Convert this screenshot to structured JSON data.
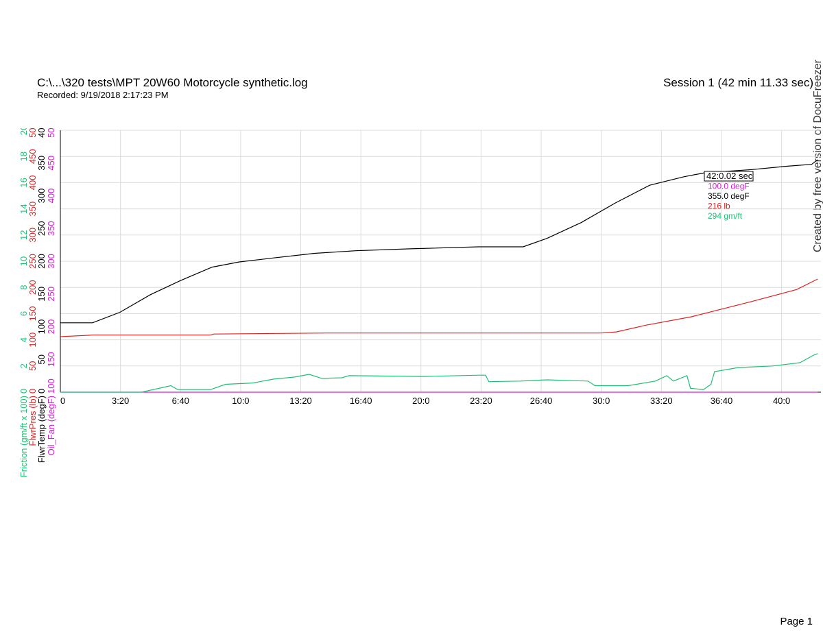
{
  "chart_data": {
    "type": "line",
    "title": "C:\\...\\320 tests\\MPT 20W60 Motorcycle synthetic.log",
    "subtitle": "Recorded: 9/19/2018 2:17:23 PM",
    "session": "Session 1 (42 min 11.33 sec)",
    "watermark": "Created by free version of DocuFreezer",
    "footer": "Page 1",
    "xlim": [
      0,
      2531
    ],
    "xticks": [
      0,
      {
        "value": 200,
        "label": "3:20"
      },
      {
        "value": 400,
        "label": "6:40"
      },
      {
        "value": 600,
        "label": "10:0"
      },
      {
        "value": 800,
        "label": "13:20"
      },
      {
        "value": 1000,
        "label": "16:40"
      },
      {
        "value": 1200,
        "label": "20:0"
      },
      {
        "value": 1400,
        "label": "23:20"
      },
      {
        "value": 1600,
        "label": "26:40"
      },
      {
        "value": 1800,
        "label": "30:0"
      },
      {
        "value": 2000,
        "label": "33:20"
      },
      {
        "value": 2200,
        "label": "36:40"
      },
      {
        "value": 2400,
        "label": "40:0"
      }
    ],
    "grid": true,
    "axes": [
      {
        "label": "Friction (gm/ft x 100)",
        "color": "#1fbf73",
        "ylim": [
          0,
          20
        ],
        "yticks": [
          0,
          2,
          4,
          6,
          8,
          10,
          12,
          14,
          16,
          18,
          20
        ]
      },
      {
        "label": "FlwrPres (lb)",
        "color": "#e02020",
        "ylim": [
          0,
          500
        ],
        "yticks": [
          0,
          50,
          100,
          150,
          200,
          250,
          300,
          350,
          400,
          450,
          500
        ]
      },
      {
        "label": "FlwrTemp (degF)",
        "color": "#000000",
        "ylim": [
          0,
          400
        ],
        "yticks": [
          0,
          50,
          100,
          150,
          200,
          250,
          300,
          350,
          400
        ]
      },
      {
        "label": "Oil_Fan (degF)",
        "color": "#d020d0",
        "ylim": [
          100,
          500
        ],
        "yticks": [
          100,
          150,
          200,
          250,
          300,
          350,
          400,
          450,
          500
        ]
      }
    ],
    "series": [
      {
        "name": "Oil_Fan (degF)",
        "axis": 3,
        "color": "#d020d0",
        "x": [
          0,
          2520
        ],
        "values": [
          100,
          100
        ]
      },
      {
        "name": "FlwrTemp (degF)",
        "axis": 2,
        "color": "#000000",
        "x": [
          0,
          107,
          198,
          300,
          398,
          505,
          596,
          710,
          846,
          983,
          1165,
          1392,
          1540,
          1620,
          1733,
          1847,
          1961,
          2075,
          2143,
          2302,
          2416,
          2500,
          2520
        ],
        "values": [
          106,
          106,
          122,
          149,
          170,
          191,
          199,
          205,
          212,
          216,
          219,
          222,
          222,
          235,
          259,
          289,
          316,
          329,
          335,
          340,
          345,
          348,
          355
        ]
      },
      {
        "name": "FlwrPres (lb)",
        "axis": 1,
        "color": "#e02020",
        "x": [
          0,
          108,
          500,
          510,
          890,
          1800,
          1850,
          1950,
          2100,
          2300,
          2450,
          2520
        ],
        "values": [
          106,
          109,
          109,
          111,
          113,
          113,
          115,
          128,
          144,
          173,
          196,
          216
        ]
      },
      {
        "name": "Friction (gm/ft x 100)",
        "axis": 0,
        "color": "#1fbf73",
        "x": [
          0,
          270,
          368,
          390,
          500,
          550,
          640,
          710,
          778,
          828,
          870,
          937,
          960,
          1210,
          1392,
          1415,
          1426,
          1530,
          1620,
          1756,
          1779,
          1890,
          1980,
          2018,
          2040,
          2085,
          2097,
          2140,
          2165,
          2177,
          2256,
          2370,
          2461,
          2507,
          2520
        ],
        "values": [
          0,
          0,
          0.5,
          0.2,
          0.2,
          0.6,
          0.7,
          1.0,
          1.15,
          1.36,
          1.05,
          1.1,
          1.26,
          1.2,
          1.3,
          1.3,
          0.8,
          0.85,
          0.94,
          0.85,
          0.5,
          0.5,
          0.85,
          1.26,
          0.85,
          1.26,
          0.3,
          0.2,
          0.6,
          1.57,
          1.88,
          2.0,
          2.25,
          2.83,
          2.94
        ]
      }
    ],
    "tooltip": [
      "42:0.02 sec",
      "100.0 degF",
      "355.0 degF",
      "216 lb",
      "294 gm/ft"
    ]
  }
}
